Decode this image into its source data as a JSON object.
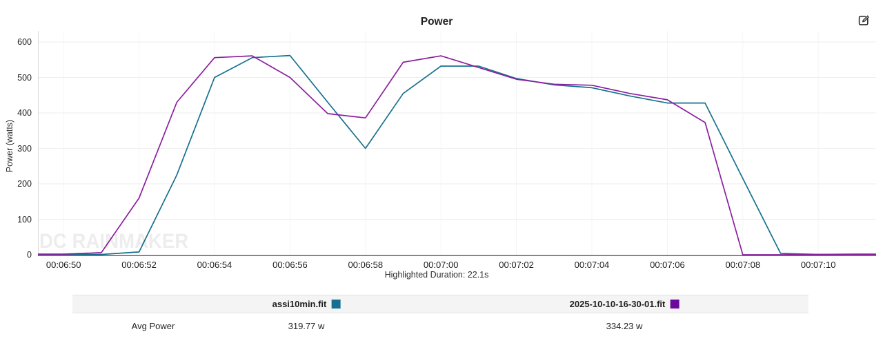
{
  "header": {
    "title": "Power",
    "edit_icon": "edit-icon"
  },
  "chart_data": {
    "type": "line",
    "title": "Power",
    "ylabel": "Power (watts)",
    "xlabel": "",
    "grid": true,
    "legend_position": "bottom-table",
    "ylim": [
      0,
      631
    ],
    "y_ticks": [
      0,
      100,
      200,
      300,
      400,
      500,
      600
    ],
    "x_tick_labels": [
      "00:06:50",
      "00:06:52",
      "00:06:54",
      "00:06:56",
      "00:06:58",
      "00:07:00",
      "00:07:02",
      "00:07:04",
      "00:07:06",
      "00:07:08",
      "00:07:10"
    ],
    "x_visible_window": [
      "00:06:49.3",
      "00:07:11.5"
    ],
    "sample_interval_seconds": 1,
    "x": [
      "00:06:49",
      "00:06:50",
      "00:06:51",
      "00:06:52",
      "00:06:53",
      "00:06:54",
      "00:06:55",
      "00:06:56",
      "00:06:57",
      "00:06:58",
      "00:06:59",
      "00:07:00",
      "00:07:01",
      "00:07:02",
      "00:07:03",
      "00:07:04",
      "00:07:05",
      "00:07:06",
      "00:07:07",
      "00:07:08",
      "00:07:09",
      "00:07:10",
      "00:07:11",
      "00:07:12"
    ],
    "series": [
      {
        "name": "assi10min.fit",
        "color": "#16708e",
        "swatch_color": "#16708e",
        "values": [
          1,
          1,
          1,
          8,
          225,
          500,
          556,
          562,
          430,
          300,
          455,
          532,
          532,
          497,
          479,
          471,
          448,
          428,
          428,
          215,
          4,
          1,
          2,
          2
        ]
      },
      {
        "name": "2025-10-10-16-30-01.fit",
        "color": "#8b1fa0",
        "swatch_color": "#6a0b9d",
        "values": [
          2,
          2,
          6,
          160,
          430,
          556,
          561,
          500,
          398,
          386,
          543,
          561,
          528,
          495,
          481,
          478,
          455,
          437,
          373,
          0,
          0,
          1,
          1,
          1
        ]
      }
    ]
  },
  "footer": {
    "highlighted_duration": "Highlighted Duration: 22.1s"
  },
  "watermark": "DC RAINMAKER",
  "table": {
    "rows": [
      {
        "label": "Avg Power",
        "values": [
          "319.77 w",
          "334.23 w"
        ]
      }
    ]
  }
}
